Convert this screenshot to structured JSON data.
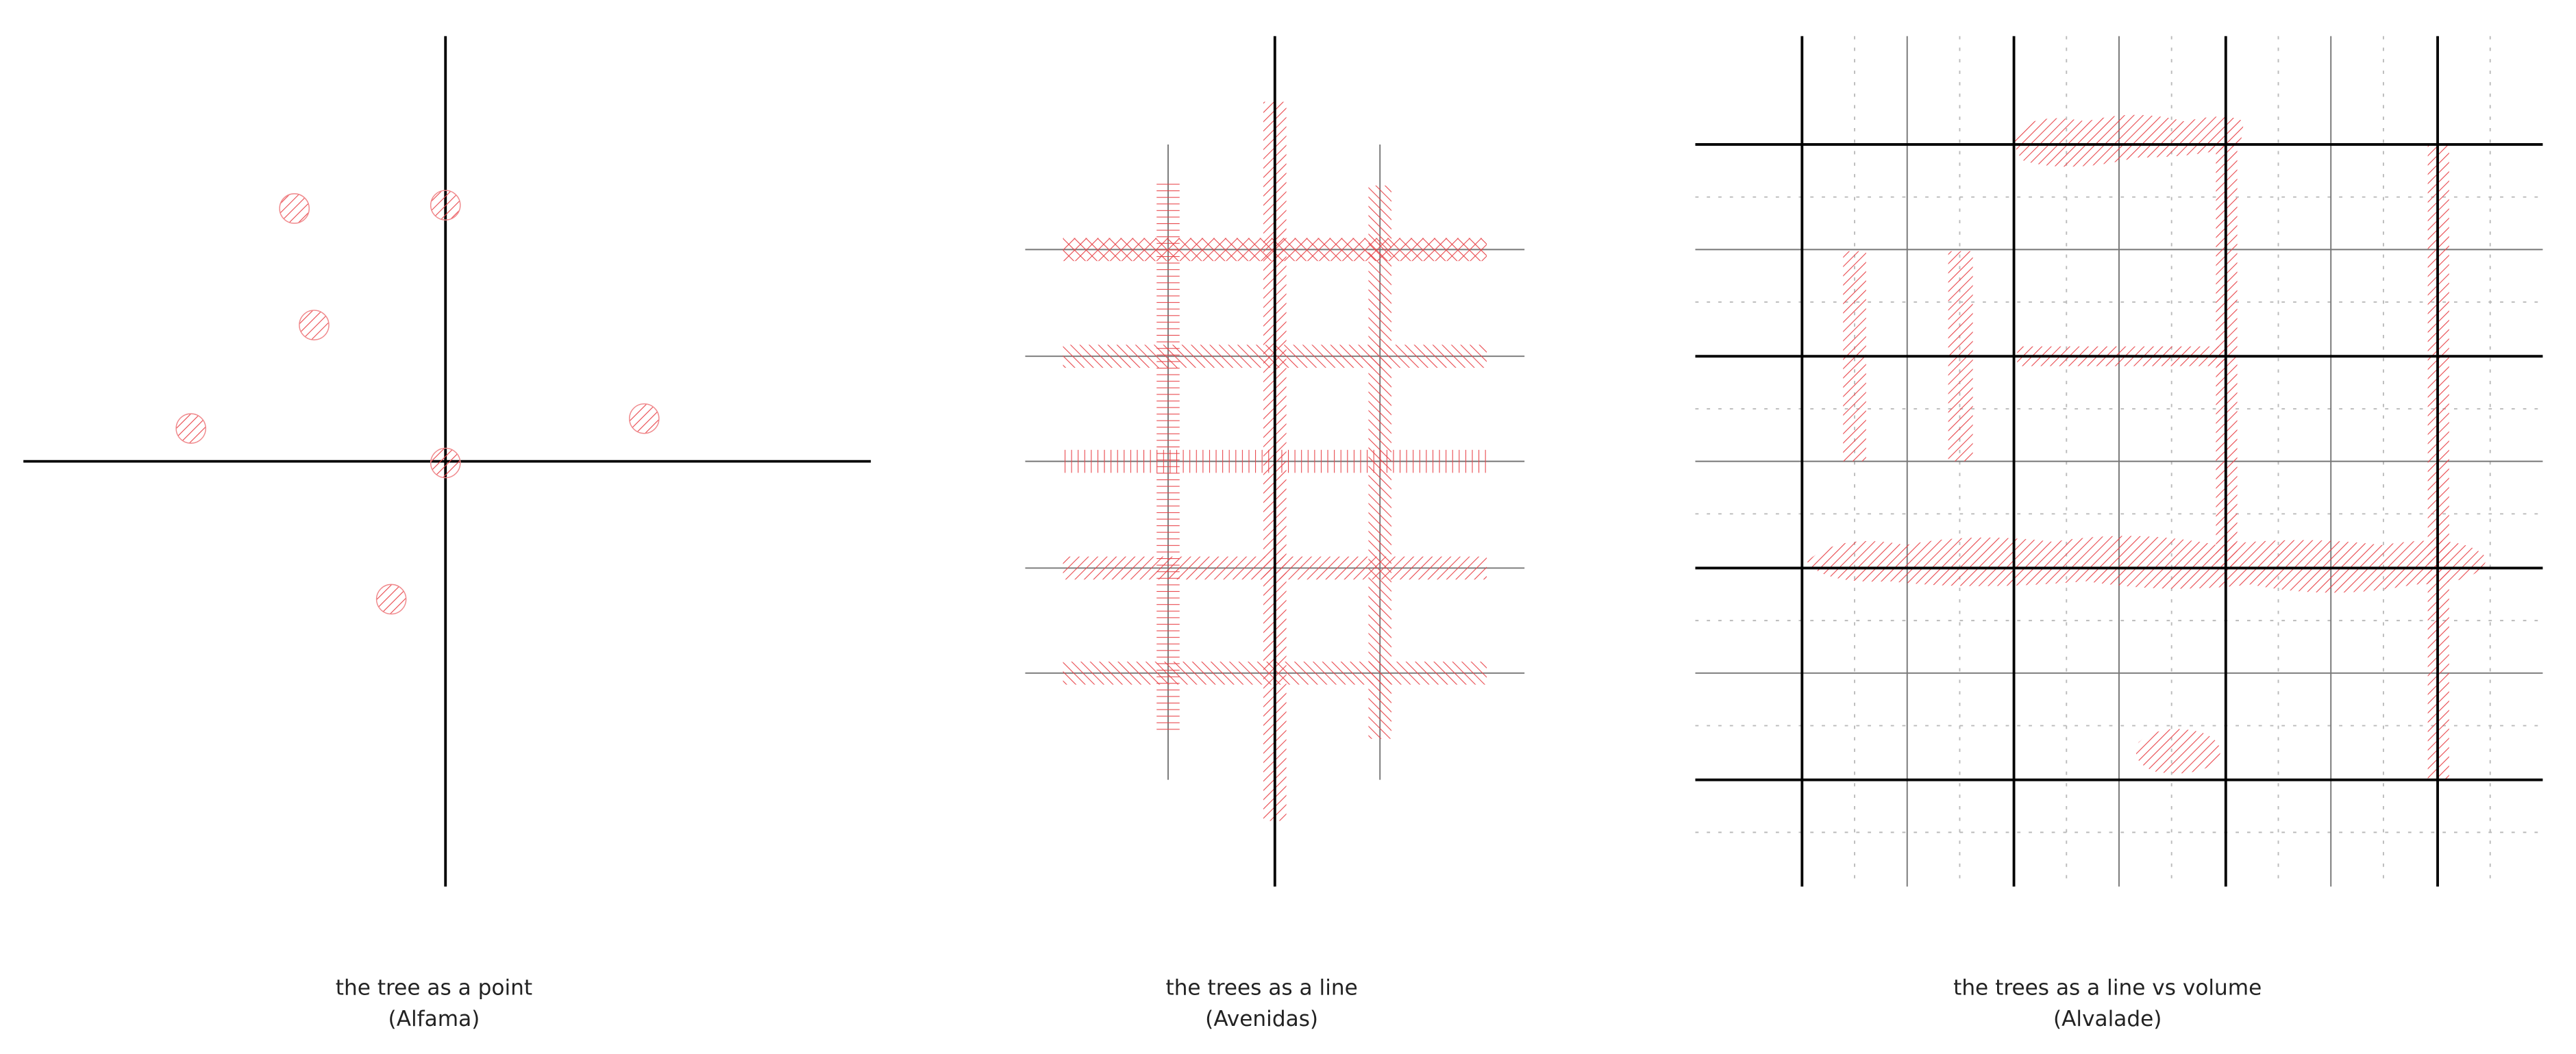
{
  "panels": [
    {
      "caption": "the tree as a point",
      "place": "(Alfama)"
    },
    {
      "caption": "the trees as a line",
      "place": "(Avenidas)"
    },
    {
      "caption": "the trees as a line vs volume",
      "place": "(Alvalade)"
    }
  ]
}
